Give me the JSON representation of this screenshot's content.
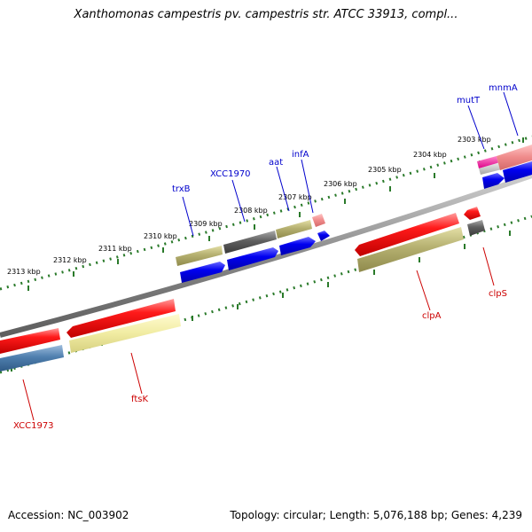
{
  "title": "Xanthomonas campestris pv. campestris str. ATCC 33913, compl...",
  "footer": {
    "accession": "Accession: NC_003902",
    "stats": "Topology: circular; Length: 5,076,188 bp; Genes: 4,239"
  },
  "colors": {
    "backbone": "#8a8a8a",
    "ruler_tick": "#2a7a2a",
    "forward_label": "#0000cc",
    "reverse_label": "#cc0000",
    "red_gene": "#ee1111",
    "blue_gene": "#0000ee",
    "olive_gene": "#b5b070",
    "gray_gene": "#606060",
    "pink_gene": "#ee8888",
    "steel_gene": "#4f7fae",
    "pale_yellow_gene": "#f0eca0",
    "magenta_gene": "#ee1199",
    "light_gray_gene": "#bbbbbb"
  },
  "ruler_labels": [
    "2313 kbp",
    "2312 kbp",
    "2311 kbp",
    "2310 kbp",
    "2309 kbp",
    "2308 kbp",
    "2307 kbp",
    "2306 kbp",
    "2305 kbp",
    "2304 kbp",
    "2303 kbp"
  ],
  "forward_gene_labels": [
    "trxB",
    "XCC1970",
    "aat",
    "infA",
    "mutT",
    "mnmA"
  ],
  "reverse_gene_labels": [
    "XCC1973",
    "ftsK",
    "clpA",
    "clpS"
  ]
}
